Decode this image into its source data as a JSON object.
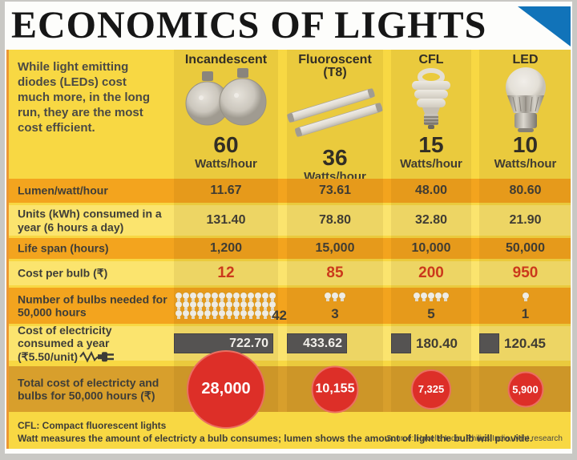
{
  "title": "ECONOMICS OF LIGHTS",
  "intro": "While light emitting diodes (LEDs) cost much more, in the long run, they are the most cost efficient.",
  "columns": [
    {
      "name": "Incandescent",
      "watts": "60",
      "watts_unit": "Watts/hour",
      "icon": "incandescent-bulb-pair-icon"
    },
    {
      "name": "Fluoroscent (T8)",
      "watts": "36",
      "watts_unit": "Watts/hour",
      "icon": "fluorescent-tubes-icon"
    },
    {
      "name": "CFL",
      "watts": "15",
      "watts_unit": "Watts/hour",
      "icon": "cfl-spiral-bulb-icon"
    },
    {
      "name": "LED",
      "watts": "10",
      "watts_unit": "Watts/hour",
      "icon": "led-bulb-icon"
    }
  ],
  "rows": [
    {
      "label": "Lumen/watt/hour",
      "style": "orange",
      "type": "values",
      "values": [
        "11.67",
        "73.61",
        "48.00",
        "80.60"
      ]
    },
    {
      "label": "Units (kWh) consumed in a year (6 hours a day)",
      "style": "pale",
      "type": "values",
      "values": [
        "131.40",
        "78.80",
        "32.80",
        "21.90"
      ]
    },
    {
      "label": "Life span (hours)",
      "style": "orange",
      "type": "values",
      "values": [
        "1,200",
        "15,000",
        "10,000",
        "50,000"
      ]
    },
    {
      "label": "Cost per bulb (₹)",
      "style": "pale",
      "type": "values",
      "value_color": "red",
      "values": [
        "12",
        "85",
        "200",
        "950"
      ]
    },
    {
      "label": "Number of bulbs needed for 50,000 hours",
      "style": "orange",
      "type": "bulbs",
      "values": [
        "42",
        "3",
        "5",
        "1"
      ]
    },
    {
      "label": "Cost of electricity consumed a year (₹5.50/unit)",
      "style": "pale",
      "type": "bars",
      "icon": "power-plug-icon",
      "values": [
        "722.70",
        "433.62",
        "180.40",
        "120.45"
      ]
    },
    {
      "label": "Total cost of electricty and bulbs for 50,000 hours (₹)",
      "style": "total",
      "type": "circles",
      "values": [
        "28,000",
        "10,155",
        "7,325",
        "5,900"
      ]
    }
  ],
  "footer": {
    "note1": "CFL: Compact fluorescent lights",
    "note2": "Watt measures the amount of electricty a bulb consumes; lumen shows the amount of light the bulb will provide.",
    "source": "Source: Havells India, Philips India, Mint research"
  },
  "colors": {
    "panel_yellow": "#f8d843",
    "column_band_gold": "#ecc839",
    "row_orange": "#f3a41e",
    "row_pale": "#fbe46e",
    "row_total_bronze": "#d89f2c",
    "accent_red_text": "#d6391f",
    "circle_red": "#dd2f28",
    "bar_gray": "#55565a",
    "triangle_blue": "#1173b9",
    "text_dark": "#3e3d38"
  },
  "chart_data": {
    "type": "table",
    "title": "ECONOMICS OF LIGHTS",
    "categories": [
      "Incandescent",
      "Fluoroscent (T8)",
      "CFL",
      "LED"
    ],
    "series": [
      {
        "name": "Watts/hour",
        "values": [
          60,
          36,
          15,
          10
        ]
      },
      {
        "name": "Lumen/watt/hour",
        "values": [
          11.67,
          73.61,
          48.0,
          80.6
        ]
      },
      {
        "name": "Units (kWh) consumed in a year (6 hours a day)",
        "values": [
          131.4,
          78.8,
          32.8,
          21.9
        ]
      },
      {
        "name": "Life span (hours)",
        "values": [
          1200,
          15000,
          10000,
          50000
        ]
      },
      {
        "name": "Cost per bulb (₹)",
        "values": [
          12,
          85,
          200,
          950
        ]
      },
      {
        "name": "Number of bulbs needed for 50,000 hours",
        "values": [
          42,
          3,
          5,
          1
        ]
      },
      {
        "name": "Cost of electricity consumed a year (₹5.50/unit)",
        "values": [
          722.7,
          433.62,
          180.4,
          120.45
        ]
      },
      {
        "name": "Total cost of electricty and bulbs for 50,000 hours (₹)",
        "values": [
          28000,
          10155,
          7325,
          5900
        ]
      }
    ],
    "legend_position": "none",
    "grid": false
  }
}
